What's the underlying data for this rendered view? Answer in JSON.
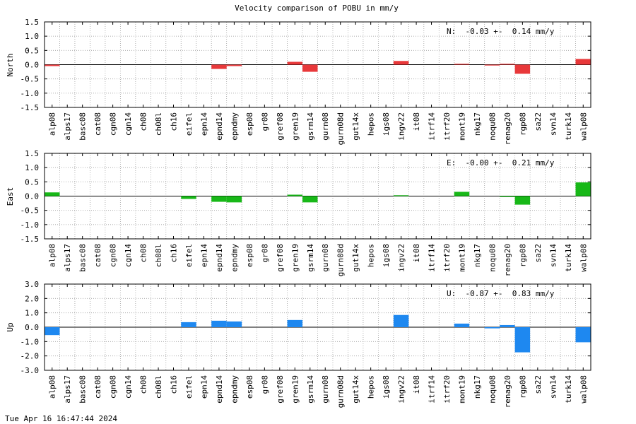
{
  "title": "Velocity comparison of POBU in mm/y",
  "footer": "Tue Apr 16 16:47:44 2024",
  "chart_data": {
    "type": "bar",
    "categories": [
      "alp08",
      "alps17",
      "basc08",
      "cat08",
      "cgn08",
      "cgn14",
      "ch08",
      "ch08l",
      "ch16",
      "eifel",
      "epn14",
      "epnd14",
      "epndmy",
      "esp08",
      "gr08",
      "gref08",
      "gren19",
      "gsrm14",
      "gurn08",
      "gurn08d",
      "gut14x",
      "hepos",
      "igs08",
      "ingv22",
      "it08",
      "itrf14",
      "itrf20",
      "mont19",
      "nkg17",
      "noqu08",
      "renag20",
      "rgp08",
      "sa22",
      "svn14",
      "turk14",
      "walp08"
    ],
    "panels": [
      {
        "ylabel": "North",
        "ylim": [
          -1.5,
          1.5
        ],
        "yticks": [
          "1.5",
          "1.0",
          "0.5",
          "0.0",
          "-0.5",
          "-1.0",
          "-1.5"
        ],
        "color": "#e8383a",
        "annotation": "N:  -0.03 +-  0.14 mm/y",
        "values": [
          -0.05,
          0,
          0,
          0,
          0,
          0,
          0,
          0,
          0,
          0,
          0,
          -0.15,
          -0.05,
          0,
          0,
          0,
          0.1,
          -0.25,
          0,
          0,
          0,
          0,
          0,
          0.13,
          0,
          0,
          0,
          0.03,
          0,
          -0.03,
          0.03,
          -0.32,
          0,
          0,
          0,
          0.2
        ]
      },
      {
        "ylabel": "East",
        "ylim": [
          -1.5,
          1.5
        ],
        "yticks": [
          "1.5",
          "1.0",
          "0.5",
          "0.0",
          "-0.5",
          "-1.0",
          "-1.5"
        ],
        "color": "#18b818",
        "annotation": "E:  -0.00 +-  0.21 mm/y",
        "values": [
          0.13,
          0,
          0,
          0,
          0,
          0,
          0,
          0,
          0,
          -0.1,
          0,
          -0.2,
          -0.22,
          0,
          0,
          0,
          0.05,
          -0.22,
          0,
          0,
          0,
          0,
          0,
          0.03,
          0,
          0,
          0,
          0.15,
          0,
          0,
          -0.03,
          -0.3,
          0,
          0,
          0,
          0.48
        ]
      },
      {
        "ylabel": "Up",
        "ylim": [
          -3.0,
          3.0
        ],
        "yticks": [
          "3.0",
          "2.0",
          "1.0",
          "0.0",
          "-1.0",
          "-2.0",
          "-3.0"
        ],
        "color": "#1e88f0",
        "annotation": "U:  -0.87 +-  0.83 mm/y",
        "values": [
          -0.55,
          0,
          0,
          0,
          0,
          0,
          0,
          0,
          0,
          0.35,
          0,
          0.45,
          0.4,
          0,
          0,
          0,
          0.5,
          0,
          0,
          0,
          0,
          0,
          0,
          0.85,
          0,
          0,
          0,
          0.25,
          0,
          -0.08,
          0.15,
          -1.75,
          0,
          0,
          0,
          -1.05
        ]
      }
    ]
  }
}
